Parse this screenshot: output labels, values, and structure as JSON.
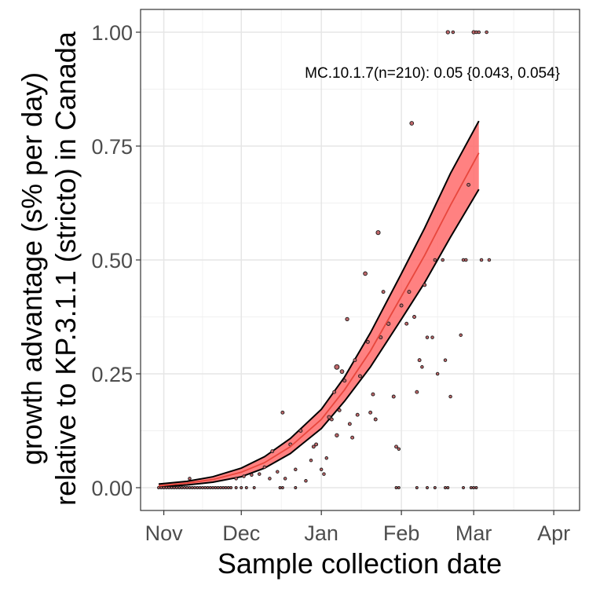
{
  "chart_data": {
    "type": "scatter",
    "xlabel": "Sample collection date",
    "ylabel_line1": "growth advantage (s% per day)",
    "ylabel_line2": "relative to KP.3.1.1 (stricto) in Canada",
    "annotation": "MC.10.1.7(n=210): 0.05 {0.043, 0.054}",
    "x_ticks": [
      {
        "label": "Nov",
        "date": "2024-11-01"
      },
      {
        "label": "Dec",
        "date": "2024-12-01"
      },
      {
        "label": "Jan",
        "date": "2025-01-01"
      },
      {
        "label": "Feb",
        "date": "2025-02-01"
      },
      {
        "label": "Mar",
        "date": "2025-03-01"
      },
      {
        "label": "Apr",
        "date": "2025-04-01"
      }
    ],
    "xlim": [
      "2024-10-23",
      "2025-04-11"
    ],
    "ylim": [
      -0.05,
      1.05
    ],
    "y_ticks": [
      {
        "label": "0.00",
        "value": 0.0
      },
      {
        "label": "0.25",
        "value": 0.25
      },
      {
        "label": "0.50",
        "value": 0.5
      },
      {
        "label": "0.75",
        "value": 0.75
      },
      {
        "label": "1.00",
        "value": 1.0
      }
    ],
    "grid": true,
    "colors": {
      "fit_line": "#e8473d",
      "ribbon_fill": "#ff6b6b",
      "ribbon_edge": "#000000",
      "point_fill": "#c0676a",
      "point_edge": "#1a1a1a"
    },
    "fit": {
      "x": [
        "2024-10-30",
        "2024-11-10",
        "2024-11-20",
        "2024-12-01",
        "2024-12-10",
        "2024-12-20",
        "2025-01-01",
        "2025-01-10",
        "2025-01-20",
        "2025-02-01",
        "2025-02-10",
        "2025-02-20",
        "2025-03-03"
      ],
      "y": [
        0.004,
        0.01,
        0.018,
        0.034,
        0.055,
        0.09,
        0.15,
        0.215,
        0.3,
        0.42,
        0.51,
        0.62,
        0.735
      ],
      "lower": [
        0.002,
        0.006,
        0.012,
        0.024,
        0.043,
        0.075,
        0.13,
        0.19,
        0.265,
        0.37,
        0.45,
        0.55,
        0.655
      ],
      "upper": [
        0.008,
        0.014,
        0.024,
        0.043,
        0.068,
        0.108,
        0.172,
        0.243,
        0.34,
        0.47,
        0.57,
        0.69,
        0.805
      ]
    },
    "points": [
      {
        "x": "2024-10-30",
        "y": 0.0,
        "s": 1.5
      },
      {
        "x": "2024-10-31",
        "y": 0.0,
        "s": 1.5
      },
      {
        "x": "2024-11-01",
        "y": 0.0,
        "s": 1.5
      },
      {
        "x": "2024-11-02",
        "y": 0.0,
        "s": 1.5
      },
      {
        "x": "2024-11-03",
        "y": 0.0,
        "s": 1.5
      },
      {
        "x": "2024-11-04",
        "y": 0.0,
        "s": 1.5
      },
      {
        "x": "2024-11-05",
        "y": 0.0,
        "s": 1.5
      },
      {
        "x": "2024-11-06",
        "y": 0.0,
        "s": 1.5
      },
      {
        "x": "2024-11-07",
        "y": 0.0,
        "s": 1.5
      },
      {
        "x": "2024-11-08",
        "y": 0.0,
        "s": 1.5
      },
      {
        "x": "2024-11-09",
        "y": 0.0,
        "s": 1.5
      },
      {
        "x": "2024-11-10",
        "y": 0.0,
        "s": 1.5
      },
      {
        "x": "2024-11-11",
        "y": 0.0,
        "s": 1.5
      },
      {
        "x": "2024-11-12",
        "y": 0.0,
        "s": 1.5
      },
      {
        "x": "2024-11-13",
        "y": 0.0,
        "s": 1.5
      },
      {
        "x": "2024-11-14",
        "y": 0.0,
        "s": 1.5
      },
      {
        "x": "2024-11-15",
        "y": 0.0,
        "s": 1.5
      },
      {
        "x": "2024-11-16",
        "y": 0.0,
        "s": 1.5
      },
      {
        "x": "2024-11-17",
        "y": 0.0,
        "s": 1.5
      },
      {
        "x": "2024-11-18",
        "y": 0.0,
        "s": 1.5
      },
      {
        "x": "2024-11-19",
        "y": 0.0,
        "s": 1.5
      },
      {
        "x": "2024-11-20",
        "y": 0.0,
        "s": 1.5
      },
      {
        "x": "2024-11-21",
        "y": 0.0,
        "s": 1.5
      },
      {
        "x": "2024-11-22",
        "y": 0.0,
        "s": 1.5
      },
      {
        "x": "2024-11-23",
        "y": 0.0,
        "s": 1.5
      },
      {
        "x": "2024-11-24",
        "y": 0.0,
        "s": 1.5
      },
      {
        "x": "2024-11-25",
        "y": 0.0,
        "s": 1.5
      },
      {
        "x": "2024-11-26",
        "y": 0.0,
        "s": 1.5
      },
      {
        "x": "2024-11-27",
        "y": 0.0,
        "s": 1.5
      },
      {
        "x": "2024-11-29",
        "y": 0.0,
        "s": 1.5
      },
      {
        "x": "2024-12-01",
        "y": 0.0,
        "s": 1.5
      },
      {
        "x": "2024-12-03",
        "y": 0.0,
        "s": 1.5
      },
      {
        "x": "2024-12-06",
        "y": 0.0,
        "s": 1.5
      },
      {
        "x": "2024-12-16",
        "y": 0.0,
        "s": 1.5
      },
      {
        "x": "2024-12-17",
        "y": 0.0,
        "s": 1.5
      },
      {
        "x": "2024-12-22",
        "y": 0.0,
        "s": 1.5
      },
      {
        "x": "2025-01-30",
        "y": 0.0,
        "s": 1.5
      },
      {
        "x": "2025-01-31",
        "y": 0.0,
        "s": 1.5
      },
      {
        "x": "2025-02-07",
        "y": 0.0,
        "s": 1.5
      },
      {
        "x": "2025-02-11",
        "y": 0.0,
        "s": 1.5
      },
      {
        "x": "2025-02-14",
        "y": 0.0,
        "s": 1.5
      },
      {
        "x": "2025-02-18",
        "y": 0.0,
        "s": 1.5
      },
      {
        "x": "2025-02-19",
        "y": 0.0,
        "s": 1.5
      },
      {
        "x": "2025-02-25",
        "y": 0.0,
        "s": 1.5
      },
      {
        "x": "2025-02-28",
        "y": 0.0,
        "s": 1.5
      },
      {
        "x": "2025-03-01",
        "y": 0.0,
        "s": 1.5
      },
      {
        "x": "2025-03-02",
        "y": 0.0,
        "s": 1.5
      },
      {
        "x": "2024-11-11",
        "y": 0.02,
        "s": 1.8
      },
      {
        "x": "2024-11-29",
        "y": 0.02,
        "s": 1.8
      },
      {
        "x": "2024-12-02",
        "y": 0.025,
        "s": 1.8
      },
      {
        "x": "2024-12-05",
        "y": 0.028,
        "s": 1.8
      },
      {
        "x": "2024-12-08",
        "y": 0.03,
        "s": 1.8
      },
      {
        "x": "2024-12-10",
        "y": 0.045,
        "s": 1.8
      },
      {
        "x": "2024-12-12",
        "y": 0.02,
        "s": 1.8
      },
      {
        "x": "2024-12-13",
        "y": 0.08,
        "s": 2.0
      },
      {
        "x": "2024-12-15",
        "y": 0.035,
        "s": 1.8
      },
      {
        "x": "2024-12-17",
        "y": 0.165,
        "s": 2.0
      },
      {
        "x": "2024-12-18",
        "y": 0.02,
        "s": 1.8
      },
      {
        "x": "2024-12-20",
        "y": 0.095,
        "s": 2.0
      },
      {
        "x": "2024-12-22",
        "y": 0.04,
        "s": 1.8
      },
      {
        "x": "2024-12-24",
        "y": 0.125,
        "s": 2.0
      },
      {
        "x": "2024-12-26",
        "y": 0.015,
        "s": 1.8
      },
      {
        "x": "2024-12-28",
        "y": 0.06,
        "s": 1.8
      },
      {
        "x": "2024-12-29",
        "y": 0.09,
        "s": 2.0
      },
      {
        "x": "2024-12-30",
        "y": 0.095,
        "s": 2.0
      },
      {
        "x": "2025-01-01",
        "y": 0.04,
        "s": 1.8
      },
      {
        "x": "2025-01-02",
        "y": 0.03,
        "s": 1.8
      },
      {
        "x": "2025-01-03",
        "y": 0.065,
        "s": 1.8
      },
      {
        "x": "2025-01-04",
        "y": 0.155,
        "s": 2.2
      },
      {
        "x": "2025-01-05",
        "y": 0.15,
        "s": 2.0
      },
      {
        "x": "2025-01-06",
        "y": 0.21,
        "s": 2.0
      },
      {
        "x": "2025-01-07",
        "y": 0.115,
        "s": 2.2
      },
      {
        "x": "2025-01-07",
        "y": 0.265,
        "s": 3.0
      },
      {
        "x": "2025-01-08",
        "y": 0.17,
        "s": 2.0
      },
      {
        "x": "2025-01-09",
        "y": 0.255,
        "s": 2.4
      },
      {
        "x": "2025-01-10",
        "y": 0.235,
        "s": 2.0
      },
      {
        "x": "2025-01-11",
        "y": 0.37,
        "s": 2.2
      },
      {
        "x": "2025-01-12",
        "y": 0.14,
        "s": 2.0
      },
      {
        "x": "2025-01-13",
        "y": 0.11,
        "s": 2.0
      },
      {
        "x": "2025-01-14",
        "y": 0.28,
        "s": 2.0
      },
      {
        "x": "2025-01-15",
        "y": 0.16,
        "s": 2.0
      },
      {
        "x": "2025-01-16",
        "y": 0.245,
        "s": 2.0
      },
      {
        "x": "2025-01-18",
        "y": 0.47,
        "s": 2.4
      },
      {
        "x": "2025-01-19",
        "y": 0.32,
        "s": 2.0
      },
      {
        "x": "2025-01-20",
        "y": 0.165,
        "s": 2.0
      },
      {
        "x": "2025-01-21",
        "y": 0.205,
        "s": 2.0
      },
      {
        "x": "2025-01-22",
        "y": 0.15,
        "s": 2.0
      },
      {
        "x": "2025-01-23",
        "y": 0.56,
        "s": 2.6
      },
      {
        "x": "2025-01-24",
        "y": 0.33,
        "s": 2.0
      },
      {
        "x": "2025-01-25",
        "y": 0.43,
        "s": 2.0
      },
      {
        "x": "2025-01-27",
        "y": 0.36,
        "s": 2.2
      },
      {
        "x": "2025-01-29",
        "y": 0.2,
        "s": 2.0
      },
      {
        "x": "2025-01-30",
        "y": 0.09,
        "s": 2.0
      },
      {
        "x": "2025-01-31",
        "y": 0.085,
        "s": 1.8
      },
      {
        "x": "2025-02-01",
        "y": 0.4,
        "s": 2.0
      },
      {
        "x": "2025-02-03",
        "y": 0.36,
        "s": 2.0
      },
      {
        "x": "2025-02-04",
        "y": 0.43,
        "s": 2.0
      },
      {
        "x": "2025-02-05",
        "y": 0.8,
        "s": 2.4
      },
      {
        "x": "2025-02-06",
        "y": 0.375,
        "s": 2.0
      },
      {
        "x": "2025-02-07",
        "y": 0.21,
        "s": 2.0
      },
      {
        "x": "2025-02-08",
        "y": 0.28,
        "s": 2.0
      },
      {
        "x": "2025-02-09",
        "y": 0.265,
        "s": 1.8
      },
      {
        "x": "2025-02-10",
        "y": 0.445,
        "s": 2.0
      },
      {
        "x": "2025-02-11",
        "y": 0.33,
        "s": 1.8
      },
      {
        "x": "2025-02-13",
        "y": 0.33,
        "s": 1.8
      },
      {
        "x": "2025-02-14",
        "y": 0.5,
        "s": 1.8
      },
      {
        "x": "2025-02-15",
        "y": 0.25,
        "s": 1.8
      },
      {
        "x": "2025-02-17",
        "y": 0.5,
        "s": 1.8
      },
      {
        "x": "2025-02-18",
        "y": 0.28,
        "s": 1.8
      },
      {
        "x": "2025-02-19",
        "y": 1.0,
        "s": 2.2
      },
      {
        "x": "2025-02-20",
        "y": 0.2,
        "s": 1.8
      },
      {
        "x": "2025-02-21",
        "y": 1.0,
        "s": 1.8
      },
      {
        "x": "2025-02-24",
        "y": 0.335,
        "s": 1.8
      },
      {
        "x": "2025-02-25",
        "y": 0.5,
        "s": 1.8
      },
      {
        "x": "2025-02-26",
        "y": 0.5,
        "s": 1.8
      },
      {
        "x": "2025-02-27",
        "y": 0.665,
        "s": 2.0
      },
      {
        "x": "2025-03-01",
        "y": 1.0,
        "s": 2.2
      },
      {
        "x": "2025-03-02",
        "y": 1.0,
        "s": 1.8
      },
      {
        "x": "2025-03-03",
        "y": 1.0,
        "s": 1.8
      },
      {
        "x": "2025-03-04",
        "y": 0.5,
        "s": 1.8
      },
      {
        "x": "2025-03-06",
        "y": 1.0,
        "s": 1.8
      },
      {
        "x": "2025-03-07",
        "y": 0.5,
        "s": 1.8
      }
    ]
  }
}
